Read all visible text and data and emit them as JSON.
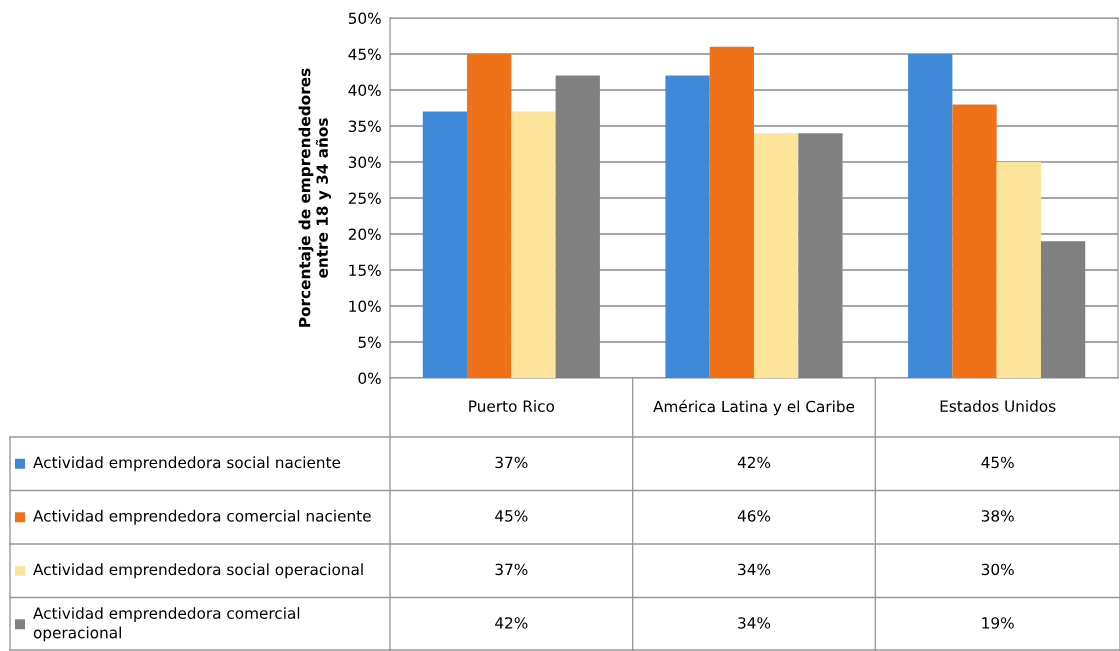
{
  "chart_data": {
    "type": "bar",
    "ylabel": "Porcentaje de emprendedores\nentre 18 y 34 años",
    "categories": [
      "Puerto Rico",
      "América Latina y el Caribe",
      "Estados Unidos"
    ],
    "series": [
      {
        "name": "Actividad emprendedora social naciente",
        "color": "#3f8ad8",
        "values": [
          37,
          42,
          45
        ],
        "value_labels": [
          "37%",
          "42%",
          "45%"
        ]
      },
      {
        "name": "Actividad emprendedora comercial naciente",
        "color": "#f07218",
        "values": [
          45,
          46,
          38
        ],
        "value_labels": [
          "45%",
          "46%",
          "38%"
        ]
      },
      {
        "name": "Actividad emprendedora social operacional",
        "color": "#fde49b",
        "values": [
          37,
          34,
          30
        ],
        "value_labels": [
          "37%",
          "34%",
          "30%"
        ]
      },
      {
        "name": "Actividad emprendedora comercial operacional",
        "color": "#808080",
        "values": [
          42,
          34,
          19
        ],
        "value_labels": [
          "42%",
          "34%",
          "19%"
        ]
      }
    ],
    "ylim": [
      0,
      50
    ],
    "yticks": [
      {
        "value": 0,
        "label": "0%"
      },
      {
        "value": 5,
        "label": "5%"
      },
      {
        "value": 10,
        "label": "10%"
      },
      {
        "value": 15,
        "label": "15%"
      },
      {
        "value": 20,
        "label": "20%"
      },
      {
        "value": 25,
        "label": "25%"
      },
      {
        "value": 30,
        "label": "30%"
      },
      {
        "value": 35,
        "label": "35%"
      },
      {
        "value": 40,
        "label": "40%"
      },
      {
        "value": 45,
        "label": "45%"
      },
      {
        "value": 50,
        "label": "50%"
      }
    ],
    "grid": "y",
    "legend": "bottom left"
  }
}
